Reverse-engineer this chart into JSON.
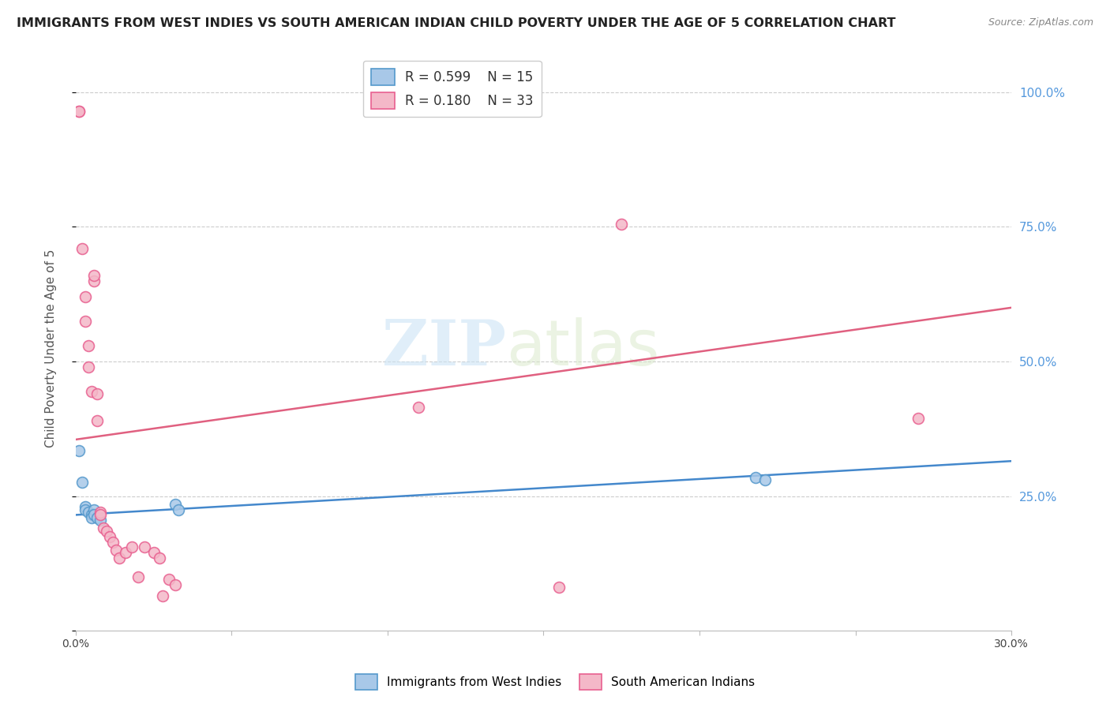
{
  "title": "IMMIGRANTS FROM WEST INDIES VS SOUTH AMERICAN INDIAN CHILD POVERTY UNDER THE AGE OF 5 CORRELATION CHART",
  "source": "Source: ZipAtlas.com",
  "ylabel": "Child Poverty Under the Age of 5",
  "xlim": [
    0.0,
    0.3
  ],
  "ylim": [
    0.0,
    1.05
  ],
  "yticks": [
    0.0,
    0.25,
    0.5,
    0.75,
    1.0
  ],
  "ytick_labels": [
    "",
    "25.0%",
    "50.0%",
    "75.0%",
    "100.0%"
  ],
  "xticks": [
    0.0,
    0.05,
    0.1,
    0.15,
    0.2,
    0.25,
    0.3
  ],
  "xtick_labels": [
    "0.0%",
    "",
    "",
    "",
    "",
    "",
    "30.0%"
  ],
  "watermark_part1": "ZIP",
  "watermark_part2": "atlas",
  "legend_blue_R": "R = 0.599",
  "legend_blue_N": "N = 15",
  "legend_pink_R": "R = 0.180",
  "legend_pink_N": "N = 33",
  "blue_fill_color": "#a8c8e8",
  "pink_fill_color": "#f4b8c8",
  "blue_edge_color": "#5599cc",
  "pink_edge_color": "#e86090",
  "blue_line_color": "#4488cc",
  "pink_line_color": "#e06080",
  "blue_label": "Immigrants from West Indies",
  "pink_label": "South American Indians",
  "blue_points_x": [
    0.001,
    0.002,
    0.003,
    0.003,
    0.004,
    0.005,
    0.005,
    0.006,
    0.006,
    0.007,
    0.008,
    0.032,
    0.033,
    0.218,
    0.221
  ],
  "blue_points_y": [
    0.335,
    0.275,
    0.23,
    0.225,
    0.22,
    0.215,
    0.21,
    0.225,
    0.215,
    0.21,
    0.205,
    0.235,
    0.225,
    0.285,
    0.28
  ],
  "pink_points_x": [
    0.001,
    0.001,
    0.002,
    0.003,
    0.003,
    0.004,
    0.004,
    0.005,
    0.006,
    0.006,
    0.007,
    0.007,
    0.008,
    0.008,
    0.009,
    0.01,
    0.011,
    0.012,
    0.013,
    0.014,
    0.016,
    0.018,
    0.02,
    0.022,
    0.025,
    0.027,
    0.028,
    0.03,
    0.032,
    0.11,
    0.155,
    0.175,
    0.27
  ],
  "pink_points_y": [
    0.965,
    0.965,
    0.71,
    0.62,
    0.575,
    0.53,
    0.49,
    0.445,
    0.65,
    0.66,
    0.44,
    0.39,
    0.22,
    0.215,
    0.19,
    0.185,
    0.175,
    0.165,
    0.15,
    0.135,
    0.145,
    0.155,
    0.1,
    0.155,
    0.145,
    0.135,
    0.065,
    0.095,
    0.085,
    0.415,
    0.08,
    0.755,
    0.395
  ],
  "background_color": "#ffffff",
  "title_fontsize": 11.5,
  "marker_size": 100,
  "marker_linewidth": 1.2,
  "blue_line_x0": 0.0,
  "blue_line_x1": 0.3,
  "blue_line_y0": 0.215,
  "blue_line_y1": 0.315,
  "pink_line_x0": 0.0,
  "pink_line_x1": 0.3,
  "pink_line_y0": 0.355,
  "pink_line_y1": 0.6
}
